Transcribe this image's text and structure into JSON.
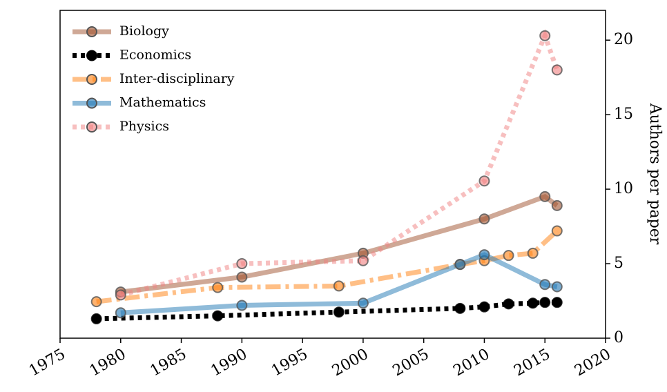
{
  "chart_data": {
    "type": "line",
    "y_label": "Authors per paper",
    "xlim": [
      1975,
      2020
    ],
    "xticks": [
      1975,
      1980,
      1985,
      1990,
      1995,
      2000,
      2005,
      2010,
      2015,
      2020
    ],
    "ylim": [
      0,
      22
    ],
    "yticks": [
      0,
      5,
      10,
      15,
      20
    ],
    "y_axis_side": "right",
    "legend": "upper left",
    "grid": false,
    "series": [
      {
        "name": "Biology",
        "color": "#a0522d",
        "linestyle": "solid",
        "x": [
          1980,
          1990,
          2000,
          2010,
          2015,
          2016
        ],
        "values": [
          3.1,
          4.1,
          5.7,
          8.0,
          9.5,
          8.9
        ]
      },
      {
        "name": "Economics",
        "color": "#000000",
        "linestyle": "dotted",
        "x": [
          1978,
          1988,
          1998,
          2008,
          2010,
          2012,
          2014,
          2015,
          2016
        ],
        "values": [
          1.3,
          1.5,
          1.75,
          2.0,
          2.1,
          2.3,
          2.35,
          2.4,
          2.4
        ]
      },
      {
        "name": "Inter-disciplinary",
        "color": "#ff7f0e",
        "linestyle": "dashdot",
        "x": [
          1978,
          1988,
          1998,
          2008,
          2010,
          2012,
          2014,
          2016
        ],
        "values": [
          2.45,
          3.4,
          3.5,
          4.95,
          5.2,
          5.55,
          5.7,
          7.2
        ]
      },
      {
        "name": "Mathematics",
        "color": "#1f77b4",
        "linestyle": "solid",
        "x": [
          1980,
          1990,
          2000,
          2008,
          2010,
          2015,
          2016
        ],
        "values": [
          1.7,
          2.2,
          2.35,
          4.95,
          5.6,
          3.6,
          3.45
        ]
      },
      {
        "name": "Physics",
        "color": "#f08080",
        "linestyle": "dotted",
        "x": [
          1980,
          1990,
          2000,
          2010,
          2015,
          2016
        ],
        "values": [
          2.9,
          5.0,
          5.2,
          10.55,
          20.3,
          18.0
        ]
      }
    ]
  }
}
